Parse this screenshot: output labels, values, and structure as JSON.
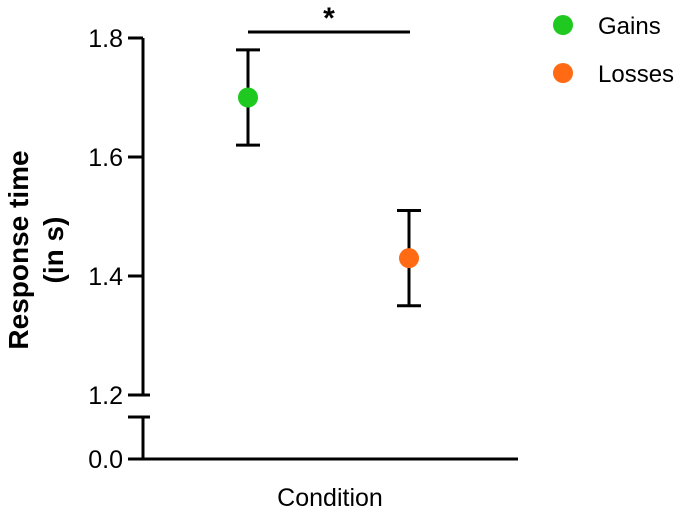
{
  "chart_data": {
    "type": "scatter",
    "xlabel": "Condition",
    "ylabel_line1": "Response time",
    "ylabel_line2": "(in s)",
    "y_ticks_upper": [
      1.8,
      1.6,
      1.4,
      1.2
    ],
    "y_tick_labels_upper": [
      "1.8",
      "1.6",
      "1.4",
      "1.2"
    ],
    "y_tick_lower": 0.0,
    "y_tick_label_lower": "0.0",
    "ylim_upper": [
      1.2,
      1.8
    ],
    "y_axis_break": true,
    "grid": false,
    "legend_position": "top-right",
    "series": [
      {
        "name": "Gains",
        "color": "#1fc91f",
        "y": 1.7,
        "error_low": 1.62,
        "error_high": 1.78
      },
      {
        "name": "Losses",
        "color": "#ff6a13",
        "y": 1.43,
        "error_low": 1.35,
        "error_high": 1.51
      }
    ],
    "significance": {
      "label": "*",
      "between": [
        "Gains",
        "Losses"
      ]
    }
  }
}
